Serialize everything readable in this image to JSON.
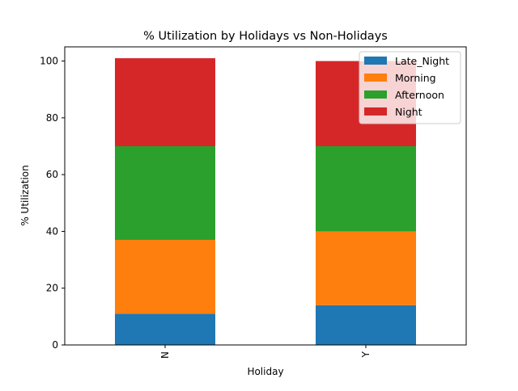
{
  "chart_data": {
    "type": "bar",
    "stacked": true,
    "title": "% Utilization by Holidays vs Non-Holidays",
    "xlabel": "Holiday",
    "ylabel": "% Utilization",
    "categories": [
      "N",
      "Y"
    ],
    "ylim": [
      0,
      105
    ],
    "yticks": [
      0,
      20,
      40,
      60,
      80,
      100
    ],
    "grid": false,
    "legend_position": "top-right",
    "series": [
      {
        "name": "Late_Night",
        "color": "#1f77b4",
        "values": [
          11,
          14
        ]
      },
      {
        "name": "Morning",
        "color": "#ff7f0e",
        "values": [
          26,
          26
        ]
      },
      {
        "name": "Afternoon",
        "color": "#2ca02c",
        "values": [
          33,
          30
        ]
      },
      {
        "name": "Night",
        "color": "#d62728",
        "values": [
          31,
          30
        ]
      }
    ]
  }
}
